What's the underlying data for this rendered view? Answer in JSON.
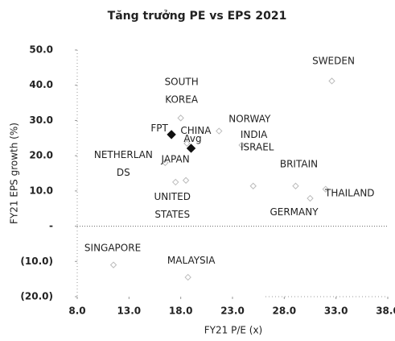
{
  "chart_data": {
    "type": "scatter",
    "title": "Tăng trưởng PE vs EPS 2021",
    "x_label": "FY21 P/E (x)",
    "y_label": "FY21 EPS growth (%)",
    "point_labels": [
      [
        "SWEDEN"
      ],
      [
        "SOUTH",
        "KOREA"
      ],
      [
        "FPT"
      ],
      [
        "CHINA"
      ],
      [
        "NORWAY"
      ],
      [
        "Avg"
      ],
      [
        "INDIA"
      ],
      [
        "ISRAEL"
      ],
      [
        "BRITAIN"
      ],
      [
        "THAILAND"
      ],
      [
        "GERMANY"
      ],
      [
        "NETHERLAN",
        "DS"
      ],
      [
        "JAPAN"
      ],
      [
        "UNITED",
        "STATES"
      ],
      [
        "SINGAPORE"
      ],
      [
        "MALAYSIA"
      ]
    ],
    "x": [
      32.6,
      18.0,
      17.1,
      18.6,
      21.7,
      19.0,
      23.9,
      25.0,
      29.1,
      32.0,
      30.5,
      16.5,
      18.5,
      17.5,
      11.5,
      18.7
    ],
    "values": [
      41.2,
      30.7,
      26.0,
      23.5,
      27.0,
      22.1,
      23.0,
      11.4,
      11.4,
      10.5,
      7.9,
      18.0,
      13.0,
      12.5,
      -11.0,
      -14.5
    ],
    "colors": [
      "#bbbbbb",
      "#bbbbbb",
      "#111111",
      "#bbbbbb",
      "#bbbbbb",
      "#111111",
      "#bbbbbb",
      "#bbbbbb",
      "#bbbbbb",
      "#bbbbbb",
      "#bbbbbb",
      "#bbbbbb",
      "#bbbbbb",
      "#bbbbbb",
      "#bbbbbb",
      "#bbbbbb"
    ],
    "xlim": [
      8,
      38
    ],
    "xticks": [
      {
        "value": 8,
        "label": "8.0"
      },
      {
        "value": 13,
        "label": "13.0"
      },
      {
        "value": 18,
        "label": "18.0"
      },
      {
        "value": 23,
        "label": "23.0"
      },
      {
        "value": 28,
        "label": "28.0"
      },
      {
        "value": 33,
        "label": "33.0"
      },
      {
        "value": 38,
        "label": "38.0"
      }
    ],
    "ylim": [
      -20,
      50
    ],
    "yticks": [
      {
        "value": 50,
        "label": "50.0"
      },
      {
        "value": 40,
        "label": "40.0"
      },
      {
        "value": 30,
        "label": "30.0"
      },
      {
        "value": 20,
        "label": "20.0"
      },
      {
        "value": 10,
        "label": "10.0"
      },
      {
        "value": 0,
        "label": "-"
      },
      {
        "value": -10,
        "label": "(10.0)"
      },
      {
        "value": -20,
        "label": "(20.0)"
      }
    ]
  }
}
